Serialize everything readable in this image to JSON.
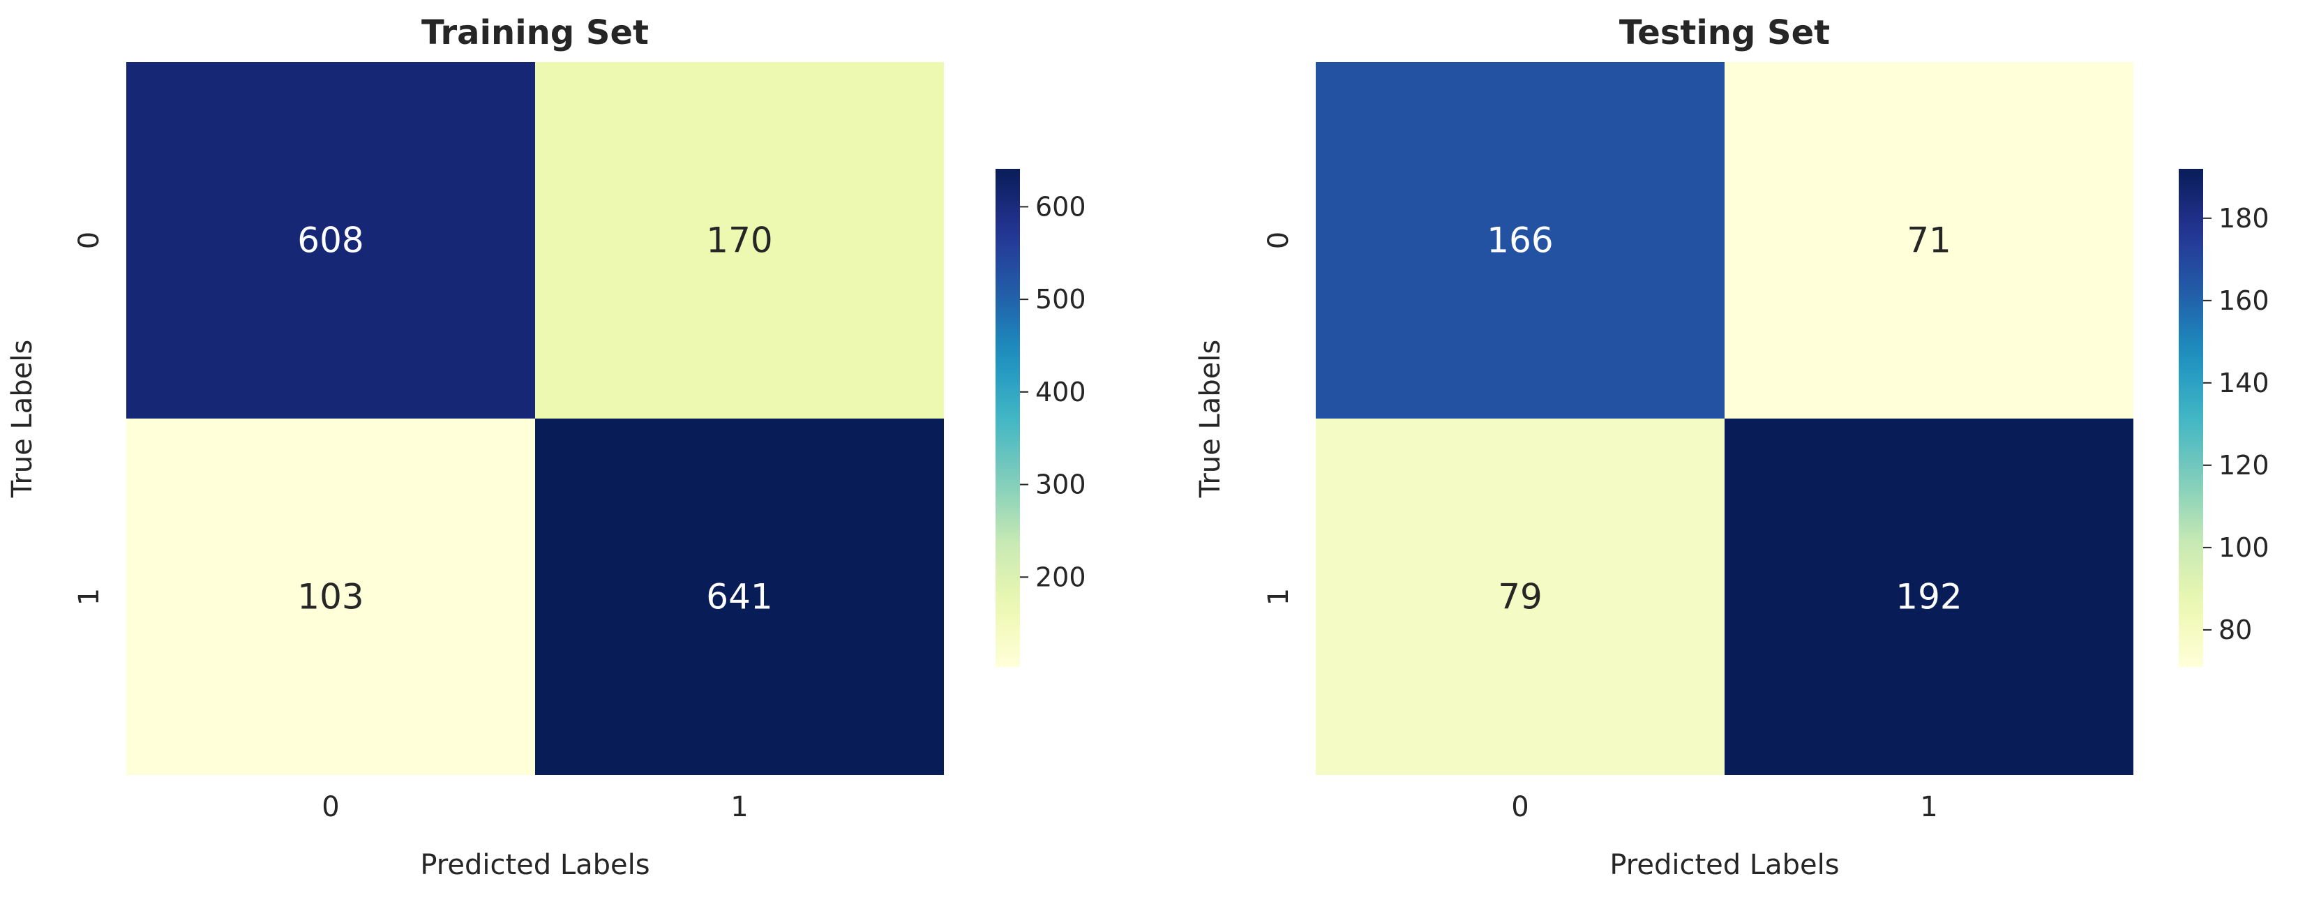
{
  "chart_data": [
    {
      "type": "heatmap",
      "title": "Training Set",
      "xlabel": "Predicted Labels",
      "ylabel": "True Labels",
      "x_categories": [
        "0",
        "1"
      ],
      "y_categories": [
        "0",
        "1"
      ],
      "values": [
        [
          608,
          170
        ],
        [
          103,
          641
        ]
      ],
      "colormap": "YlGnBu",
      "colorbar": {
        "min": 103,
        "max": 641,
        "ticks": [
          "200",
          "300",
          "400",
          "500",
          "600"
        ]
      }
    },
    {
      "type": "heatmap",
      "title": "Testing Set",
      "xlabel": "Predicted Labels",
      "ylabel": "True Labels",
      "x_categories": [
        "0",
        "1"
      ],
      "y_categories": [
        "0",
        "1"
      ],
      "values": [
        [
          166,
          71
        ],
        [
          79,
          192
        ]
      ],
      "colormap": "YlGnBu",
      "colorbar": {
        "min": 71,
        "max": 192,
        "ticks": [
          "80",
          "100",
          "120",
          "140",
          "160",
          "180"
        ]
      }
    }
  ]
}
